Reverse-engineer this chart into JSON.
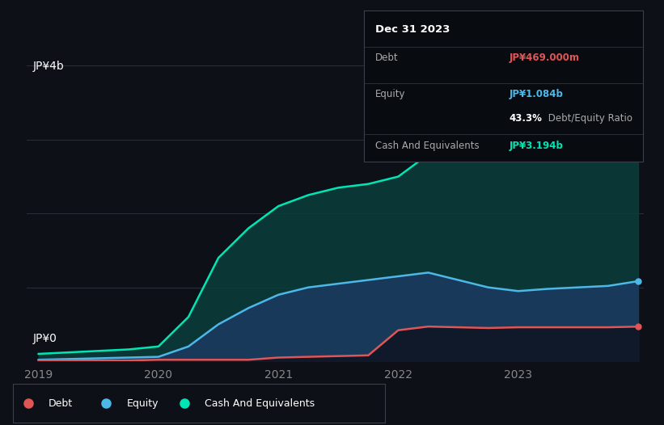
{
  "background_color": "#0d1117",
  "plot_bg_color": "#0d1117",
  "title": "Dec 31 2023",
  "ylabel": "JP¥4b",
  "y0_label": "JP¥0",
  "xlabel_ticks": [
    "2019",
    "2020",
    "2021",
    "2022",
    "2023"
  ],
  "ylim": [
    0,
    4.2
  ],
  "grid_color": "#2a2f3a",
  "debt_color": "#e05555",
  "equity_color": "#4db8e8",
  "cash_color": "#00e5b4",
  "cash_fill": "#0a3d3a",
  "equity_fill": "#1a3a5c",
  "tooltip_bg": "#080b10",
  "debt_label": "Debt",
  "equity_label": "Equity",
  "cash_label": "Cash And Equivalents",
  "tooltip_debt_value": "JP¥469.000m",
  "tooltip_equity_value": "JP¥1.084b",
  "tooltip_ratio_pct": "43.3%",
  "tooltip_ratio_text": " Debt/Equity Ratio",
  "tooltip_cash_value": "JP¥3.194b",
  "x": [
    2019.0,
    2019.25,
    2019.5,
    2019.75,
    2020.0,
    2020.25,
    2020.5,
    2020.75,
    2021.0,
    2021.25,
    2021.5,
    2021.75,
    2022.0,
    2022.25,
    2022.5,
    2022.75,
    2023.0,
    2023.25,
    2023.5,
    2023.75,
    2024.0
  ],
  "debt": [
    0.01,
    0.01,
    0.01,
    0.01,
    0.02,
    0.02,
    0.02,
    0.02,
    0.05,
    0.06,
    0.07,
    0.08,
    0.42,
    0.47,
    0.46,
    0.45,
    0.46,
    0.46,
    0.46,
    0.46,
    0.469
  ],
  "equity": [
    0.02,
    0.03,
    0.04,
    0.05,
    0.06,
    0.2,
    0.5,
    0.72,
    0.9,
    1.0,
    1.05,
    1.1,
    1.15,
    1.2,
    1.1,
    1.0,
    0.95,
    0.98,
    1.0,
    1.02,
    1.084
  ],
  "cash": [
    0.1,
    0.12,
    0.14,
    0.16,
    0.2,
    0.6,
    1.4,
    1.8,
    2.1,
    2.25,
    2.35,
    2.4,
    2.5,
    2.8,
    2.9,
    2.95,
    3.0,
    3.05,
    3.1,
    3.15,
    3.194
  ]
}
